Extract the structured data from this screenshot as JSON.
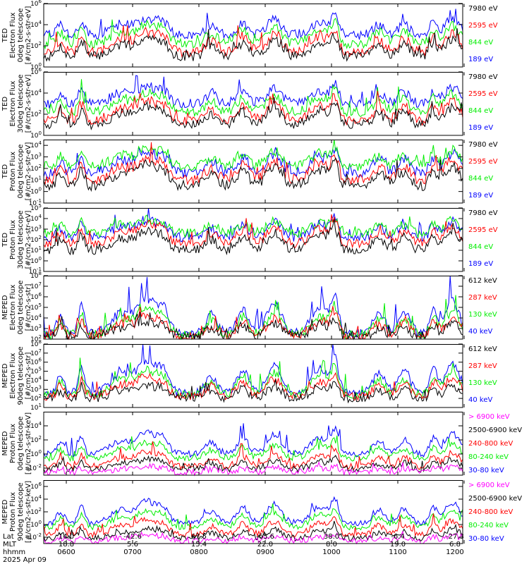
{
  "chart_data": [
    {
      "type": "line",
      "instrument": "TED",
      "ylabel": [
        "TED",
        "Electron Flux",
        "0deg telescope",
        "[#/cm2-s-str-eV]"
      ],
      "yticks": [
        {
          "exp": 0
        },
        {
          "exp": 2
        },
        {
          "exp": 4
        },
        {
          "exp": 6
        }
      ],
      "ylim_exp": [
        0,
        6
      ],
      "series": [
        {
          "name": "7980 eV",
          "color": "#000000",
          "base": 1,
          "amp": 1.9
        },
        {
          "name": "2595 eV",
          "color": "#ff0000",
          "base": 1.4,
          "amp": 2.1
        },
        {
          "name": "844 eV",
          "color": "#00ee00",
          "base": 2.2,
          "amp": 2.0
        },
        {
          "name": "189 eV",
          "color": "#0000ff",
          "base": 3.0,
          "amp": 1.8
        }
      ]
    },
    {
      "type": "line",
      "instrument": "TED",
      "ylabel": [
        "TED",
        "Electron Flux",
        "30deg telescope",
        "[#/cm2-s-str-eV]"
      ],
      "yticks": [
        {
          "exp": 0
        },
        {
          "exp": 2
        },
        {
          "exp": 4
        },
        {
          "exp": 6
        }
      ],
      "ylim_exp": [
        0,
        6
      ],
      "series": [
        {
          "name": "7980 eV",
          "color": "#000000",
          "base": 1,
          "amp": 1.9
        },
        {
          "name": "2595 eV",
          "color": "#ff0000",
          "base": 1.4,
          "amp": 2.1
        },
        {
          "name": "844 eV",
          "color": "#00ee00",
          "base": 2.2,
          "amp": 2.0
        },
        {
          "name": "189 eV",
          "color": "#0000ff",
          "base": 3.0,
          "amp": 1.8
        }
      ]
    },
    {
      "type": "line",
      "instrument": "TED",
      "ylabel": [
        "TED",
        "Proton Flux",
        "0deg telescope",
        "[#/cm2-s-str-eV]"
      ],
      "yticks": [
        {
          "exp": -1
        },
        {
          "exp": 0
        },
        {
          "exp": 1
        },
        {
          "exp": 2
        },
        {
          "exp": 3
        },
        {
          "exp": 4
        }
      ],
      "ylim_exp": [
        -1,
        4.5
      ],
      "series": [
        {
          "name": "7980 eV",
          "color": "#000000",
          "base": 0.5,
          "amp": 2.0
        },
        {
          "name": "2595 eV",
          "color": "#ff0000",
          "base": 1.0,
          "amp": 2.0
        },
        {
          "name": "844 eV",
          "color": "#00ee00",
          "base": 2.2,
          "amp": 1.6
        },
        {
          "name": "189 eV",
          "color": "#0000ff",
          "base": 1.6,
          "amp": 2.0
        }
      ]
    },
    {
      "type": "line",
      "instrument": "TED",
      "ylabel": [
        "TED",
        "Proton Flux",
        "30deg telescope",
        "[#/cm2-s-str-eV]"
      ],
      "yticks": [
        {
          "exp": -1
        },
        {
          "exp": 0
        },
        {
          "exp": 1
        },
        {
          "exp": 2
        },
        {
          "exp": 3
        },
        {
          "exp": 4
        },
        {
          "exp": 5
        }
      ],
      "ylim_exp": [
        -1,
        5
      ],
      "series": [
        {
          "name": "7980 eV",
          "color": "#000000",
          "base": 1.0,
          "amp": 2.0
        },
        {
          "name": "2595 eV",
          "color": "#ff0000",
          "base": 1.6,
          "amp": 2.0
        },
        {
          "name": "844 eV",
          "color": "#00ee00",
          "base": 2.6,
          "amp": 1.4
        },
        {
          "name": "189 eV",
          "color": "#0000ff",
          "base": 2.2,
          "amp": 1.8
        }
      ]
    },
    {
      "type": "line",
      "instrument": "MEPED",
      "ylabel": [
        "MEPED",
        "Electron Flux",
        "0deg telescope",
        "[#/cm2-s-str]"
      ],
      "yticks": [
        {
          "exp": 2
        },
        {
          "exp": 3
        },
        {
          "exp": 4
        },
        {
          "exp": 5
        },
        {
          "exp": 6
        },
        {
          "exp": 7
        },
        {
          "exp": 8
        }
      ],
      "ylim_exp": [
        2,
        8
      ],
      "series": [
        {
          "name": "612 keV",
          "color": "#000000",
          "base": 2.2,
          "amp": 1.6
        },
        {
          "name": "287 keV",
          "color": "#ff0000",
          "base": 2.3,
          "amp": 2.0
        },
        {
          "name": "130 keV",
          "color": "#00ee00",
          "base": 2.4,
          "amp": 2.6
        },
        {
          "name": "40 keV",
          "color": "#0000ff",
          "base": 2.5,
          "amp": 3.6
        }
      ]
    },
    {
      "type": "line",
      "instrument": "MEPED",
      "ylabel": [
        "MEPED",
        "Electron Flux",
        "90deg telescope",
        "[#/cm2-s-str]"
      ],
      "yticks": [
        {
          "exp": 1
        },
        {
          "exp": 2
        },
        {
          "exp": 3
        },
        {
          "exp": 4
        },
        {
          "exp": 5
        },
        {
          "exp": 6
        },
        {
          "exp": 7
        },
        {
          "exp": 8
        }
      ],
      "ylim_exp": [
        1,
        8
      ],
      "series": [
        {
          "name": "612 keV",
          "color": "#000000",
          "base": 2.0,
          "amp": 1.6
        },
        {
          "name": "287 keV",
          "color": "#ff0000",
          "base": 2.2,
          "amp": 2.4
        },
        {
          "name": "130 keV",
          "color": "#00ee00",
          "base": 2.4,
          "amp": 3.0
        },
        {
          "name": "40 keV",
          "color": "#0000ff",
          "base": 2.6,
          "amp": 3.8
        }
      ]
    },
    {
      "type": "line",
      "instrument": "MEPED",
      "ylabel": [
        "MEPED",
        "Proton Flux",
        "0deg telescope",
        "[#/cm2-s-str-keV]"
      ],
      "yticks": [
        {
          "exp": -2
        },
        {
          "exp": 0
        },
        {
          "exp": 2
        },
        {
          "exp": 4
        }
      ],
      "ylim_exp": [
        -3,
        6
      ],
      "series": [
        {
          "name": "> 6900 keV",
          "color": "#ff00ff",
          "base": -2.6,
          "amp": 0.9
        },
        {
          "name": "2500-6900 keV",
          "color": "#000000",
          "base": -2.2,
          "amp": 1.6
        },
        {
          "name": "240-800 keV",
          "color": "#ff0000",
          "base": -1.8,
          "amp": 2.2
        },
        {
          "name": "80-240 keV",
          "color": "#00ee00",
          "base": -0.6,
          "amp": 2.4
        },
        {
          "name": "30-80 keV",
          "color": "#0000ff",
          "base": 0.0,
          "amp": 3.4
        }
      ]
    },
    {
      "type": "line",
      "instrument": "MEPED",
      "ylabel": [
        "MEPED",
        "Proton Flux",
        "90deg telescope",
        "[#/cm2-s-str-keV]"
      ],
      "yticks": [
        {
          "exp": -2
        },
        {
          "exp": 0
        },
        {
          "exp": 2
        },
        {
          "exp": 4
        },
        {
          "exp": 6
        }
      ],
      "ylim_exp": [
        -3,
        7
      ],
      "series": [
        {
          "name": "> 6900 keV",
          "color": "#ff00ff",
          "base": -2.6,
          "amp": 1.0
        },
        {
          "name": "2500-6900 keV",
          "color": "#000000",
          "base": -2.2,
          "amp": 1.8
        },
        {
          "name": "240-800 keV",
          "color": "#ff0000",
          "base": -1.6,
          "amp": 2.6
        },
        {
          "name": "80-240 keV",
          "color": "#00ee00",
          "base": -0.4,
          "amp": 2.8
        },
        {
          "name": "30-80 keV",
          "color": "#0000ff",
          "base": 0.2,
          "amp": 3.8
        }
      ]
    }
  ],
  "passes": [
    {
      "t": 0.04,
      "w": 0.012,
      "h": 0.5
    },
    {
      "t": 0.09,
      "w": 0.01,
      "h": 0.75
    },
    {
      "t": 0.185,
      "w": 0.035,
      "h": 0.55
    },
    {
      "t": 0.245,
      "w": 0.03,
      "h": 0.9
    },
    {
      "t": 0.285,
      "w": 0.02,
      "h": 0.6
    },
    {
      "t": 0.4,
      "w": 0.02,
      "h": 0.5
    },
    {
      "t": 0.475,
      "w": 0.02,
      "h": 0.65
    },
    {
      "t": 0.55,
      "w": 0.025,
      "h": 0.8
    },
    {
      "t": 0.66,
      "w": 0.032,
      "h": 0.7
    },
    {
      "t": 0.695,
      "w": 0.012,
      "h": 0.85
    },
    {
      "t": 0.8,
      "w": 0.02,
      "h": 0.55
    },
    {
      "t": 0.86,
      "w": 0.02,
      "h": 0.6
    },
    {
      "t": 0.93,
      "w": 0.012,
      "h": 0.65
    },
    {
      "t": 0.975,
      "w": 0.025,
      "h": 0.85
    }
  ],
  "footer": {
    "rows": [
      {
        "name": "Lat",
        "values": [
          "14.0",
          "-42.6",
          "67.5",
          "-65.6",
          "38.0",
          "-6.4",
          "-27.3"
        ]
      },
      {
        "name": "MLT",
        "values": [
          "18.8",
          "5.6",
          "15.4",
          "22.0",
          "8.0",
          "19.0",
          "6.8"
        ]
      },
      {
        "name": "hhmm",
        "values": [
          "0600",
          "0700",
          "0800",
          "0900",
          "1000",
          "1100",
          "1200"
        ]
      }
    ],
    "date": "2025 Apr 09"
  }
}
